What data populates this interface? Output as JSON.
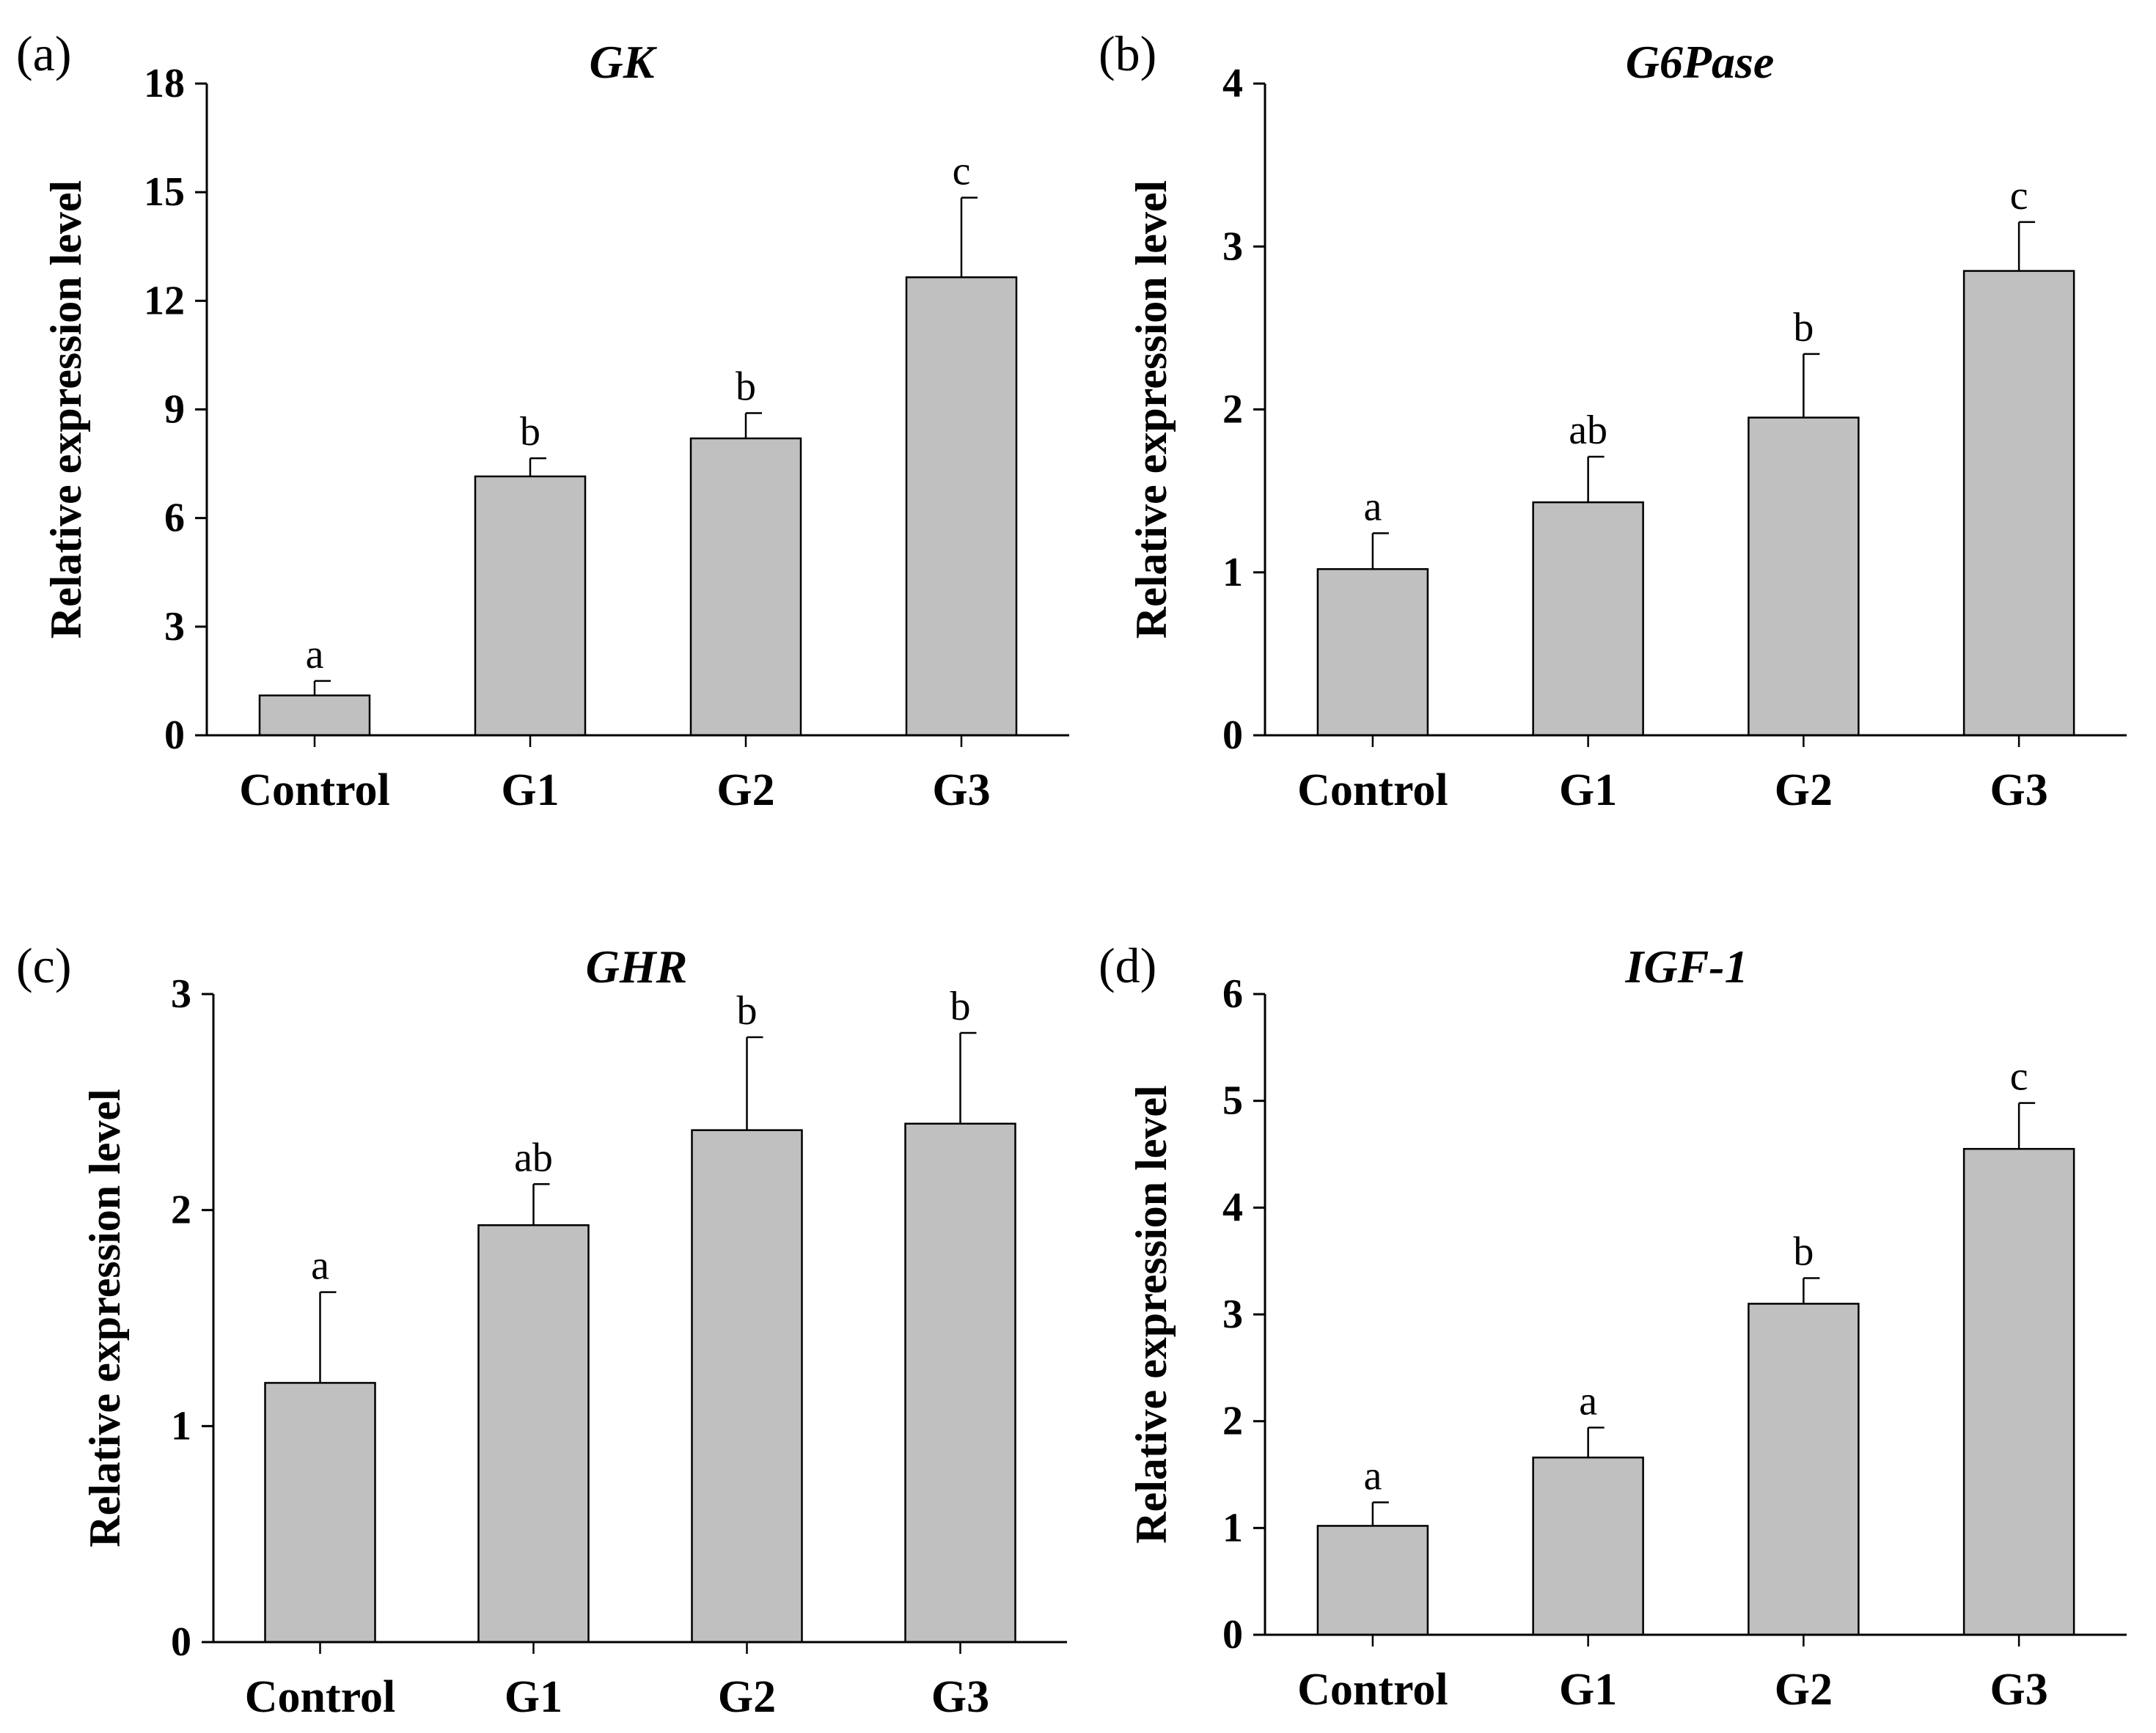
{
  "chart_data": [
    {
      "panel": "(a)",
      "type": "bar",
      "title": "GK",
      "ylabel": "Relative expression level",
      "xlabel": "",
      "categories": [
        "Control",
        "G1",
        "G2",
        "G3"
      ],
      "values": [
        1.1,
        7.15,
        8.2,
        12.65
      ],
      "errors": [
        0.4,
        0.5,
        0.7,
        2.2
      ],
      "significance": [
        "a",
        "b",
        "b",
        "c"
      ],
      "ylim": [
        0,
        18
      ],
      "yticks": [
        "0",
        "3",
        "6",
        "9",
        "12",
        "15",
        "18"
      ],
      "bar_color": "#c0c0c0"
    },
    {
      "panel": "(b)",
      "type": "bar",
      "title": "G6Pase",
      "ylabel": "Relative expression level",
      "xlabel": "",
      "categories": [
        "Control",
        "G1",
        "G2",
        "G3"
      ],
      "values": [
        1.02,
        1.43,
        1.95,
        2.85
      ],
      "errors": [
        0.22,
        0.28,
        0.39,
        0.3
      ],
      "significance": [
        "a",
        "ab",
        "b",
        "c"
      ],
      "ylim": [
        0,
        4
      ],
      "yticks": [
        "0",
        "1",
        "2",
        "3",
        "4"
      ],
      "bar_color": "#c0c0c0"
    },
    {
      "panel": "(c)",
      "type": "bar",
      "title": "GHR",
      "ylabel": "Relative expression level",
      "xlabel": "",
      "categories": [
        "Control",
        "G1",
        "G2",
        "G3"
      ],
      "values": [
        1.2,
        1.93,
        2.37,
        2.4
      ],
      "errors": [
        0.42,
        0.19,
        0.43,
        0.42
      ],
      "significance": [
        "a",
        "ab",
        "b",
        "b"
      ],
      "ylim": [
        0,
        3
      ],
      "yticks": [
        "0",
        "1",
        "2",
        "3"
      ],
      "bar_color": "#c0c0c0"
    },
    {
      "panel": "(d)",
      "type": "bar",
      "title": "IGF-1",
      "ylabel": "Relative expression level",
      "xlabel": "",
      "categories": [
        "Control",
        "G1",
        "G2",
        "G3"
      ],
      "values": [
        1.02,
        1.66,
        3.1,
        4.55
      ],
      "errors": [
        0.22,
        0.28,
        0.24,
        0.43
      ],
      "significance": [
        "a",
        "a",
        "b",
        "c"
      ],
      "ylim": [
        0,
        6
      ],
      "yticks": [
        "0",
        "1",
        "2",
        "3",
        "4",
        "5",
        "6"
      ],
      "bar_color": "#c0c0c0"
    }
  ]
}
